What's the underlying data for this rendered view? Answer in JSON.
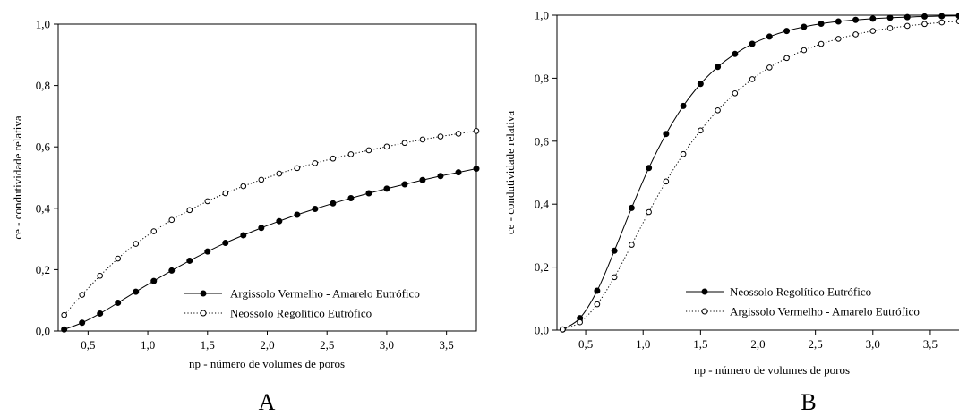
{
  "chart_data": [
    {
      "type": "line",
      "panel_label": "A",
      "xlabel": "np - número de volumes de poros",
      "ylabel": "ce - condutividade relativa",
      "xlim": [
        0.25,
        3.75
      ],
      "ylim": [
        0.0,
        1.0
      ],
      "xticks": [
        0.5,
        1.0,
        1.5,
        2.0,
        2.5,
        3.0,
        3.5
      ],
      "xtick_labels": [
        "0,5",
        "1,0",
        "1,5",
        "2,0",
        "2,5",
        "3,0",
        "3,5"
      ],
      "yticks": [
        0.0,
        0.2,
        0.4,
        0.6,
        0.8,
        1.0
      ],
      "ytick_labels": [
        "0,0",
        "0,2",
        "0,4",
        "0,6",
        "0,8",
        "1,0"
      ],
      "grid": false,
      "legend_position": "bottom-right",
      "x": [
        0.3,
        0.45,
        0.6,
        0.75,
        0.9,
        1.05,
        1.2,
        1.35,
        1.5,
        1.65,
        1.8,
        1.95,
        2.1,
        2.25,
        2.4,
        2.55,
        2.7,
        2.85,
        3.0,
        3.15,
        3.3,
        3.45,
        3.6,
        3.75
      ],
      "series": [
        {
          "name": "Argissolo Vermelho - Amarelo Eutrófico",
          "marker": "filled",
          "line": "solid",
          "values": [
            0.005,
            0.027,
            0.057,
            0.092,
            0.128,
            0.163,
            0.197,
            0.229,
            0.259,
            0.287,
            0.312,
            0.336,
            0.358,
            0.379,
            0.398,
            0.416,
            0.433,
            0.449,
            0.464,
            0.478,
            0.492,
            0.505,
            0.517,
            0.529
          ]
        },
        {
          "name": "Neossolo Regolítico Eutrófico",
          "marker": "open",
          "line": "dotted",
          "values": [
            0.052,
            0.118,
            0.18,
            0.236,
            0.284,
            0.325,
            0.362,
            0.394,
            0.423,
            0.449,
            0.472,
            0.493,
            0.513,
            0.531,
            0.547,
            0.562,
            0.576,
            0.589,
            0.601,
            0.613,
            0.624,
            0.634,
            0.643,
            0.652
          ]
        }
      ]
    },
    {
      "type": "line",
      "panel_label": "B",
      "xlabel": "np - número de volumes de poros",
      "ylabel": "ce - condutividade relativa",
      "xlim": [
        0.25,
        3.75
      ],
      "ylim": [
        0.0,
        1.0
      ],
      "xticks": [
        0.5,
        1.0,
        1.5,
        2.0,
        2.5,
        3.0,
        3.5
      ],
      "xtick_labels": [
        "0,5",
        "1,0",
        "1,5",
        "2,0",
        "2,5",
        "3,0",
        "3,5"
      ],
      "yticks": [
        0.0,
        0.2,
        0.4,
        0.6,
        0.8,
        1.0
      ],
      "ytick_labels": [
        "0,0",
        "0,2",
        "0,4",
        "0,6",
        "0,8",
        "1,0"
      ],
      "grid": false,
      "legend_position": "bottom-right",
      "x": [
        0.3,
        0.45,
        0.6,
        0.75,
        0.9,
        1.05,
        1.2,
        1.35,
        1.5,
        1.65,
        1.8,
        1.95,
        2.1,
        2.25,
        2.4,
        2.55,
        2.7,
        2.85,
        3.0,
        3.15,
        3.3,
        3.45,
        3.6,
        3.75
      ],
      "series": [
        {
          "name": "Neossolo Regolítico Eutrófico",
          "marker": "filled",
          "line": "solid",
          "values": [
            0.002,
            0.038,
            0.125,
            0.252,
            0.388,
            0.515,
            0.623,
            0.712,
            0.782,
            0.836,
            0.877,
            0.909,
            0.932,
            0.95,
            0.963,
            0.973,
            0.98,
            0.985,
            0.989,
            0.992,
            0.994,
            0.996,
            0.997,
            0.998
          ]
        },
        {
          "name": "Argissolo Vermelho - Amarelo Eutrófico",
          "marker": "open",
          "line": "dotted",
          "values": [
            0.002,
            0.025,
            0.082,
            0.168,
            0.271,
            0.375,
            0.472,
            0.559,
            0.634,
            0.698,
            0.752,
            0.797,
            0.834,
            0.864,
            0.889,
            0.909,
            0.925,
            0.939,
            0.95,
            0.959,
            0.966,
            0.972,
            0.977,
            0.981
          ]
        }
      ]
    }
  ]
}
